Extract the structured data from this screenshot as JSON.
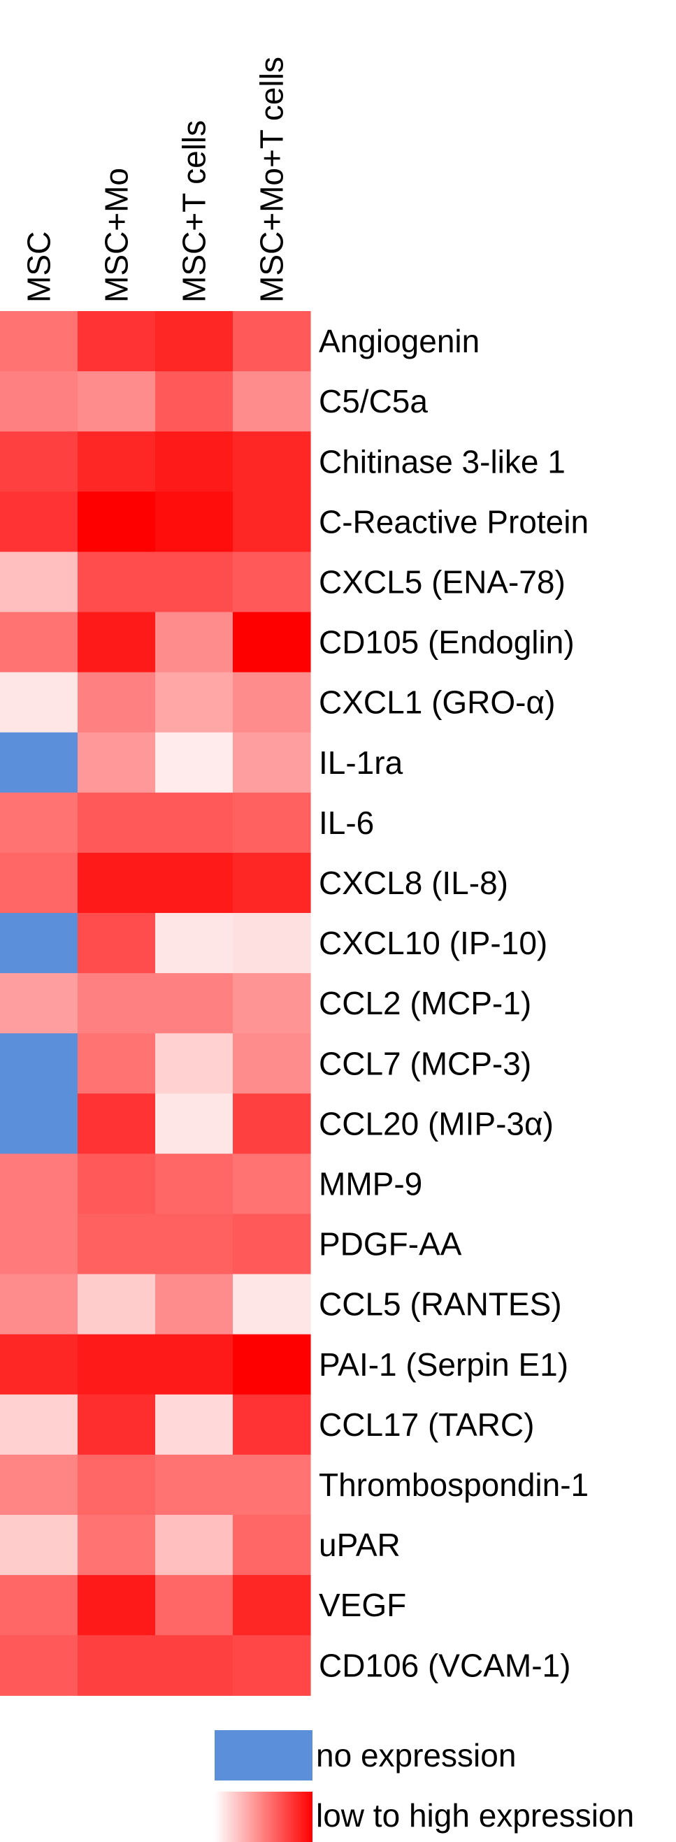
{
  "chart_data": {
    "type": "heatmap",
    "columns": [
      "MSC",
      "MSC+Mo",
      "MSC+T cells",
      "MSC+Mo+T cells"
    ],
    "rows": [
      "Angiogenin",
      "C5/C5a",
      "Chitinase 3-like 1",
      "C-Reactive Protein",
      "CXCL5 (ENA-78)",
      "CD105 (Endoglin)",
      "CXCL1 (GRO-α)",
      "IL-1ra",
      "IL-6",
      "CXCL8 (IL-8)",
      "CXCL10 (IP-10)",
      "CCL2 (MCP-1)",
      "CCL7 (MCP-3)",
      "CCL20 (MIP-3α)",
      "MMP-9",
      "PDGF-AA",
      "CCL5 (RANTES)",
      "PAI-1 (Serpin E1)",
      "CCL17 (TARC)",
      "Thrombospondin-1",
      "uPAR",
      "VEGF",
      "CD106 (VCAM-1)"
    ],
    "values": [
      [
        0.55,
        0.8,
        0.85,
        0.65
      ],
      [
        0.5,
        0.45,
        0.65,
        0.45
      ],
      [
        0.75,
        0.85,
        0.9,
        0.85
      ],
      [
        0.8,
        1.0,
        0.95,
        0.85
      ],
      [
        0.25,
        0.7,
        0.7,
        0.65
      ],
      [
        0.55,
        0.9,
        0.45,
        1.0
      ],
      [
        0.1,
        0.5,
        0.35,
        0.45
      ],
      [
        null,
        0.4,
        0.08,
        0.38
      ],
      [
        0.55,
        0.65,
        0.65,
        0.62
      ],
      [
        0.6,
        0.9,
        0.9,
        0.85
      ],
      [
        null,
        0.7,
        0.1,
        0.12
      ],
      [
        0.38,
        0.5,
        0.5,
        0.42
      ],
      [
        null,
        0.55,
        0.18,
        0.45
      ],
      [
        null,
        0.8,
        0.1,
        0.75
      ],
      [
        0.52,
        0.65,
        0.6,
        0.55
      ],
      [
        0.52,
        0.62,
        0.62,
        0.65
      ],
      [
        0.45,
        0.2,
        0.45,
        0.1
      ],
      [
        0.85,
        0.9,
        0.9,
        1.0
      ],
      [
        0.18,
        0.82,
        0.15,
        0.8
      ],
      [
        0.48,
        0.6,
        0.55,
        0.55
      ],
      [
        0.2,
        0.55,
        0.25,
        0.6
      ],
      [
        0.6,
        0.9,
        0.6,
        0.85
      ],
      [
        0.65,
        0.75,
        0.75,
        0.72
      ]
    ],
    "null_meaning": "no expression",
    "colors": {
      "no_expression": "#5b8fd9",
      "low": "#ffffff",
      "high": "#ff0000"
    },
    "legend": [
      {
        "label": "no expression",
        "kind": "swatch"
      },
      {
        "label": "low to high expression",
        "kind": "gradient"
      }
    ]
  }
}
